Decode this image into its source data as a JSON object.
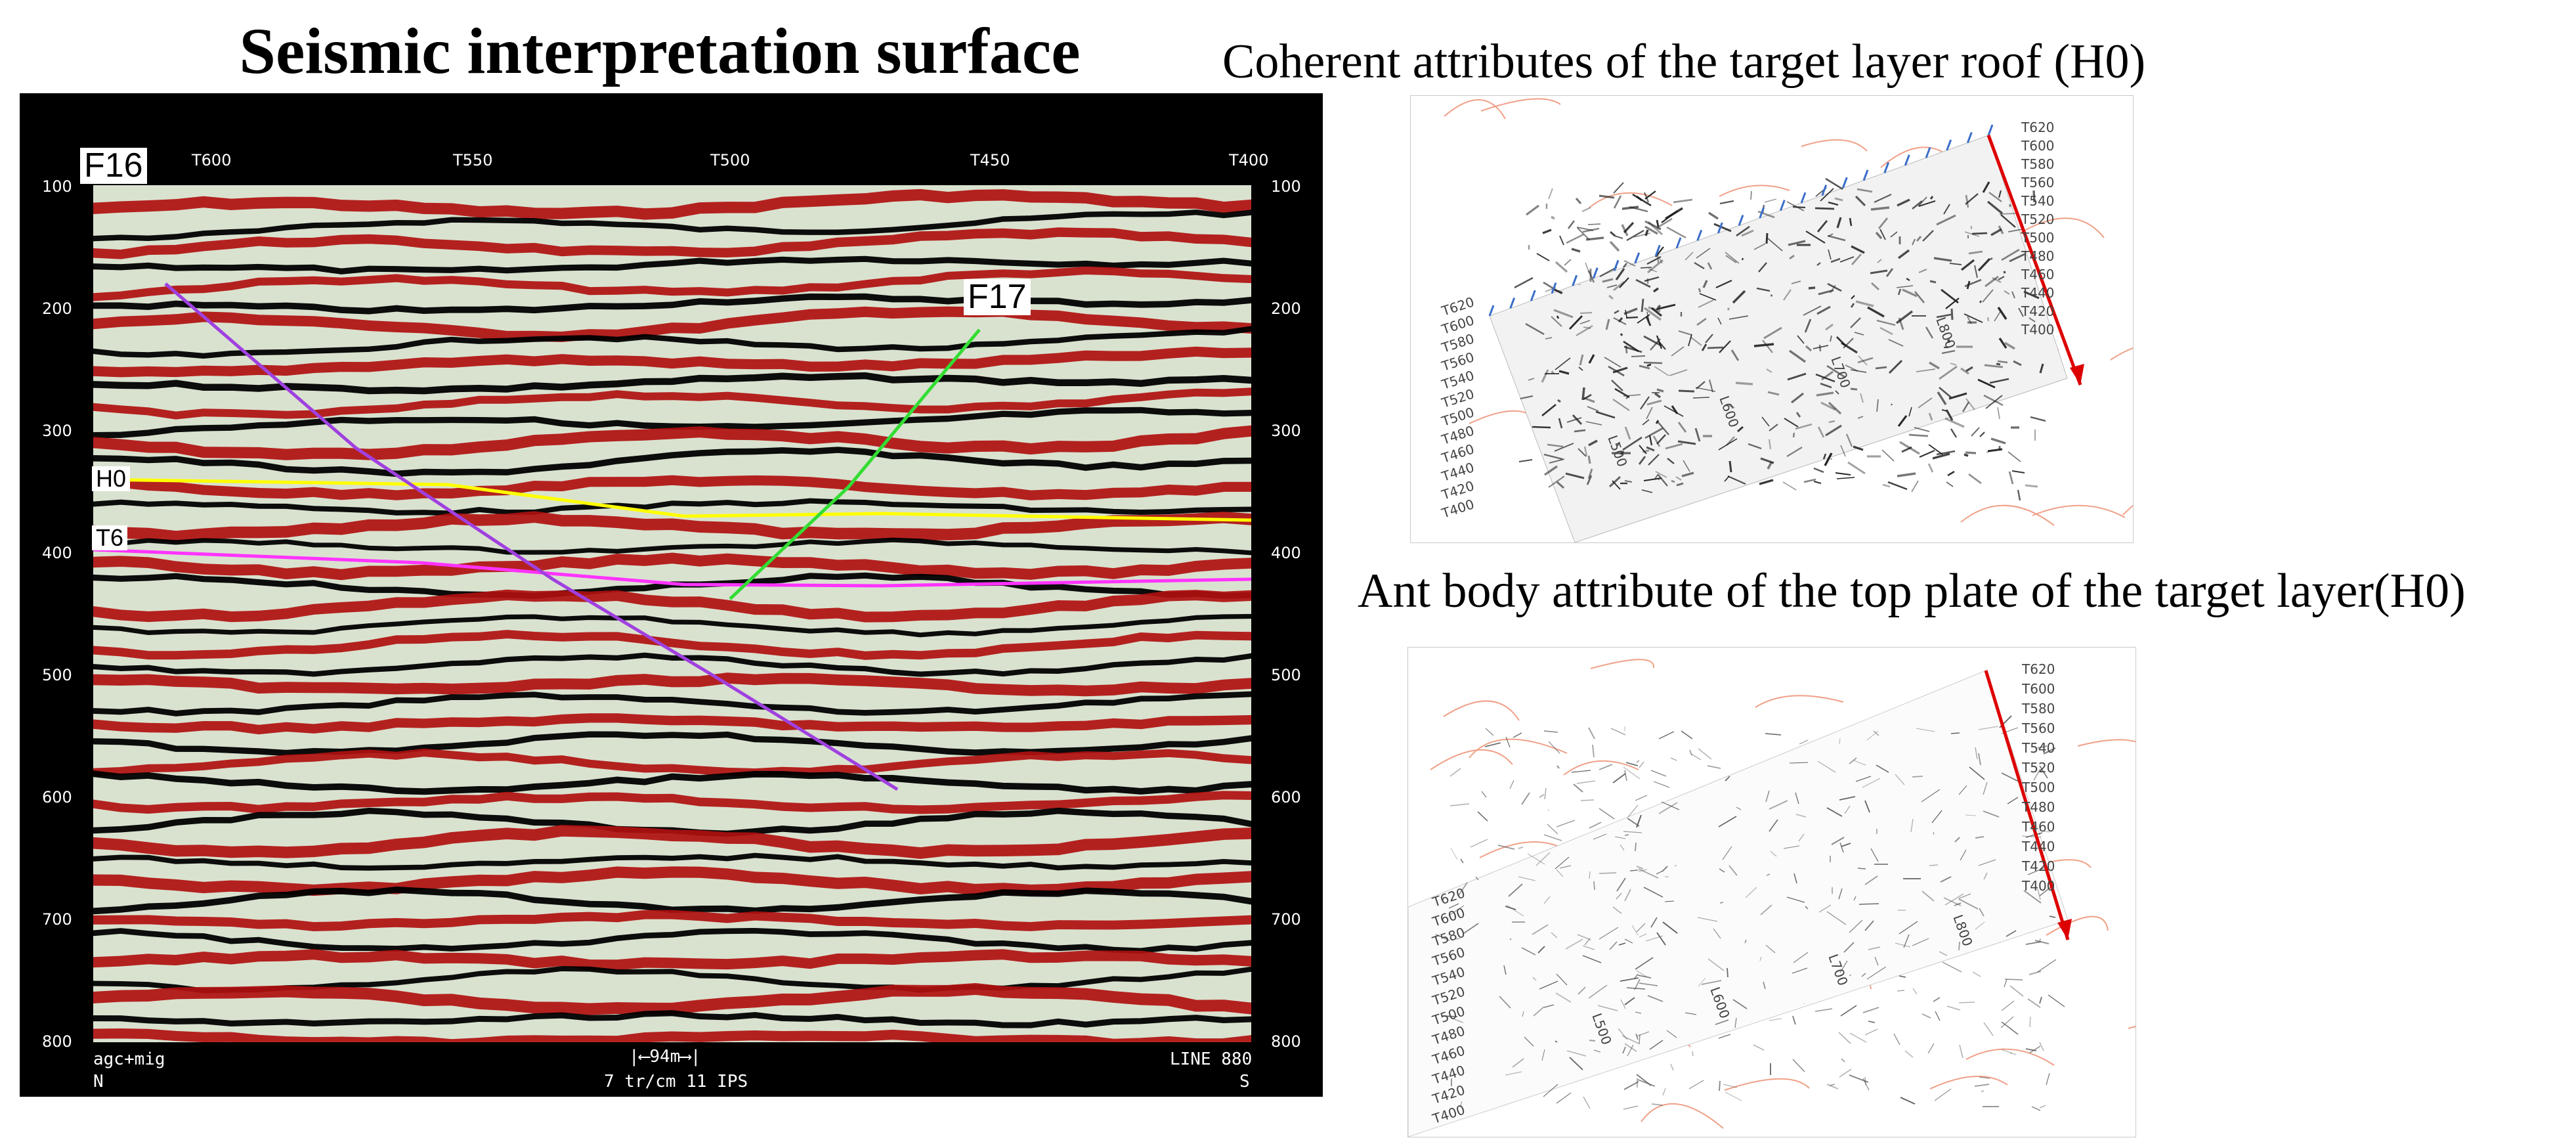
{
  "titles": {
    "main": "Seismic interpretation surface",
    "coherent": "Coherent attributes of the target layer roof (H0)",
    "ant": "Ant body attribute of the top plate of the target layer(H0)"
  },
  "seismic": {
    "top_traces": [
      "T600",
      "T550",
      "T500",
      "T450",
      "T400"
    ],
    "time_ticks": [
      "100",
      "200",
      "300",
      "400",
      "500",
      "600",
      "700",
      "800"
    ],
    "labels": {
      "f16": "F16",
      "f17": "F17",
      "h0": "H0",
      "t6": "T6"
    },
    "footer": {
      "left_top": "agc+mig",
      "left_bottom": "N",
      "scale": "94m",
      "center": "7 tr/cm 11 IPS",
      "right_top": "LINE 880",
      "right_bottom": "S"
    },
    "colors": {
      "h0": "#ffff00",
      "t6": "#ff33ff",
      "f16": "#a040e0",
      "f17": "#33dd33",
      "peak": "#b01010",
      "trough": "#000000"
    }
  },
  "maps": {
    "t_labels": [
      "T620",
      "T600",
      "T580",
      "T560",
      "T540",
      "T520",
      "T500",
      "T480",
      "T460",
      "T440",
      "T420",
      "T400"
    ],
    "l_labels": [
      "L500",
      "L600",
      "L700",
      "L800"
    ]
  }
}
